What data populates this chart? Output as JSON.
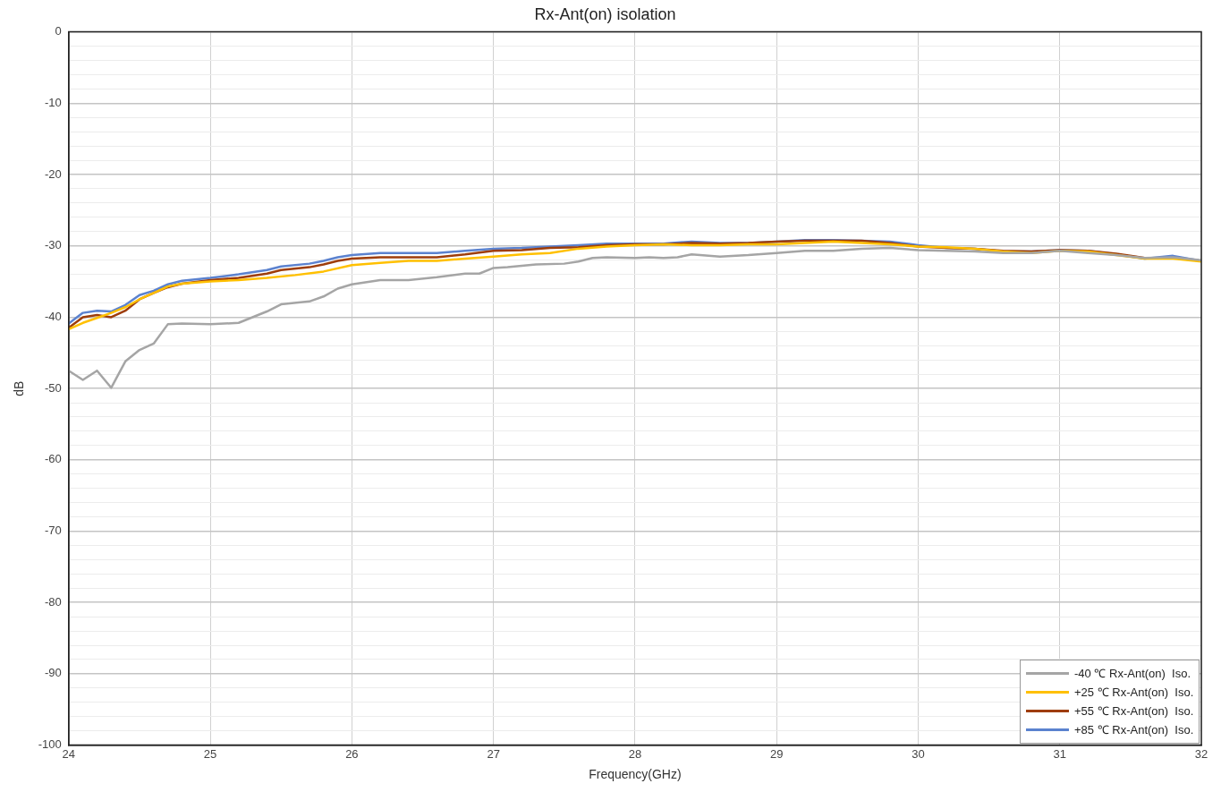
{
  "chart_data": {
    "type": "line",
    "title": "Rx-Ant(on) isolation",
    "xlabel": "Frequency(GHz)",
    "ylabel": "dB",
    "xlim": [
      24,
      32
    ],
    "xticks": [
      24,
      25,
      26,
      27,
      28,
      29,
      30,
      31,
      32
    ],
    "ylim": [
      -100,
      0
    ],
    "yticks": [
      0,
      {
        "value": -2,
        "label": null
      },
      {
        "value": -4,
        "label": null
      },
      {
        "value": -6,
        "label": null
      },
      {
        "value": -8,
        "label": null
      },
      -10,
      {
        "value": -12,
        "label": null
      },
      {
        "value": -14,
        "label": null
      },
      {
        "value": -16,
        "label": null
      },
      {
        "value": -18,
        "label": null
      },
      -20,
      {
        "value": -22,
        "label": null
      },
      {
        "value": -24,
        "label": null
      },
      {
        "value": -26,
        "label": null
      },
      {
        "value": -28,
        "label": null
      },
      -30,
      {
        "value": -32,
        "label": null
      },
      {
        "value": -34,
        "label": null
      },
      {
        "value": -36,
        "label": null
      },
      {
        "value": -38,
        "label": null
      },
      -40,
      {
        "value": -42,
        "label": null
      },
      {
        "value": -44,
        "label": null
      },
      {
        "value": -46,
        "label": null
      },
      {
        "value": -48,
        "label": null
      },
      -50,
      {
        "value": -52,
        "label": null
      },
      {
        "value": -54,
        "label": null
      },
      {
        "value": -56,
        "label": null
      },
      {
        "value": -58,
        "label": null
      },
      -60,
      {
        "value": -62,
        "label": null
      },
      {
        "value": -64,
        "label": null
      },
      {
        "value": -66,
        "label": null
      },
      {
        "value": -68,
        "label": null
      },
      -70,
      {
        "value": -72,
        "label": null
      },
      {
        "value": -74,
        "label": null
      },
      {
        "value": -76,
        "label": null
      },
      {
        "value": -78,
        "label": null
      },
      -80,
      {
        "value": -82,
        "label": null
      },
      {
        "value": -84,
        "label": null
      },
      {
        "value": -86,
        "label": null
      },
      {
        "value": -88,
        "label": null
      },
      -90,
      {
        "value": -92,
        "label": null
      },
      {
        "value": -94,
        "label": null
      },
      {
        "value": -96,
        "label": null
      },
      {
        "value": -98,
        "label": null
      },
      -100
    ],
    "grid": true,
    "legend": "bottom right",
    "marker": "none",
    "line_style": "solid",
    "series": [
      {
        "name": "-40 ℃ Rx-Ant(on)  Iso.",
        "color": "#a5a5a5",
        "x": [
          24,
          24.1,
          24.2,
          24.3,
          24.4,
          24.5,
          24.6,
          24.7,
          24.8,
          25,
          25.2,
          25.4,
          25.5,
          25.7,
          25.8,
          25.9,
          26,
          26.2,
          26.4,
          26.6,
          26.8,
          26.9,
          27,
          27.1,
          27.3,
          27.5,
          27.6,
          27.7,
          27.8,
          28,
          28.1,
          28.2,
          28.3,
          28.4,
          28.6,
          28.8,
          29,
          29.2,
          29.4,
          29.6,
          29.8,
          30,
          30.2,
          30.4,
          30.6,
          30.8,
          31,
          31.2,
          31.4,
          31.6,
          31.8,
          32
        ],
        "values": [
          -47.5,
          -48.8,
          -47.5,
          -49.9,
          -46.2,
          -44.6,
          -43.7,
          -41,
          -40.9,
          -41,
          -40.8,
          -39.2,
          -38.2,
          -37.8,
          -37.1,
          -36,
          -35.4,
          -34.8,
          -34.8,
          -34.4,
          -33.9,
          -33.9,
          -33.1,
          -33,
          -32.6,
          -32.5,
          -32.2,
          -31.7,
          -31.6,
          -31.7,
          -31.6,
          -31.7,
          -31.6,
          -31.2,
          -31.5,
          -31.3,
          -31,
          -30.7,
          -30.7,
          -30.4,
          -30.3,
          -30.6,
          -30.7,
          -30.8,
          -31,
          -31,
          -30.7,
          -31,
          -31.3,
          -31.7,
          -31.6,
          -32
        ]
      },
      {
        "name": "+25 ℃ Rx-Ant(on)  Iso.",
        "color": "#ffc000",
        "x": [
          24,
          24.1,
          24.2,
          24.3,
          24.4,
          24.5,
          24.6,
          24.7,
          24.8,
          25,
          25.2,
          25.4,
          25.6,
          25.8,
          26,
          26.2,
          26.4,
          26.6,
          26.8,
          27,
          27.2,
          27.4,
          27.6,
          27.8,
          28,
          28.2,
          28.4,
          28.6,
          28.8,
          29,
          29.2,
          29.4,
          29.6,
          29.8,
          30,
          30.2,
          30.4,
          30.6,
          30.8,
          31,
          31.2,
          31.4,
          31.6,
          31.8,
          32
        ],
        "values": [
          -41.7,
          -40.8,
          -40.1,
          -39.4,
          -38.6,
          -37.5,
          -36.6,
          -35.7,
          -35.3,
          -35,
          -34.8,
          -34.5,
          -34.1,
          -33.6,
          -32.7,
          -32.4,
          -32.1,
          -32.1,
          -31.8,
          -31.5,
          -31.2,
          -31,
          -30.4,
          -30.1,
          -29.9,
          -29.8,
          -29.9,
          -29.9,
          -29.8,
          -29.8,
          -29.6,
          -29.4,
          -29.6,
          -29.8,
          -30.1,
          -30.2,
          -30.4,
          -30.8,
          -31,
          -30.7,
          -30.8,
          -31.3,
          -31.8,
          -31.8,
          -32.2
        ]
      },
      {
        "name": "+55 ℃ Rx-Ant(on)  Iso.",
        "color": "#9e3d0a",
        "x": [
          24,
          24.1,
          24.2,
          24.3,
          24.4,
          24.5,
          24.6,
          24.7,
          24.8,
          25,
          25.2,
          25.4,
          25.5,
          25.7,
          25.8,
          25.9,
          26,
          26.2,
          26.6,
          26.8,
          27,
          27.2,
          27.4,
          27.6,
          27.8,
          28,
          28.2,
          28.4,
          28.6,
          28.8,
          29,
          29.2,
          29.4,
          29.6,
          29.8,
          30,
          30.2,
          30.4,
          30.6,
          30.8,
          31,
          31.2,
          31.4,
          31.6,
          31.8,
          32
        ],
        "values": [
          -41.5,
          -40,
          -39.7,
          -40,
          -39.1,
          -37.5,
          -36.6,
          -35.8,
          -35.3,
          -34.8,
          -34.5,
          -33.9,
          -33.4,
          -33,
          -32.6,
          -32.1,
          -31.8,
          -31.6,
          -31.6,
          -31.2,
          -30.7,
          -30.6,
          -30.3,
          -30.2,
          -29.9,
          -29.8,
          -29.8,
          -29.6,
          -29.7,
          -29.6,
          -29.4,
          -29.3,
          -29.3,
          -29.3,
          -29.6,
          -30.1,
          -30.3,
          -30.4,
          -30.7,
          -30.8,
          -30.6,
          -30.7,
          -31.1,
          -31.7,
          -31.7,
          -32.1
        ]
      },
      {
        "name": "+85 ℃ Rx-Ant(on)  Iso.",
        "color": "#5b82cf",
        "x": [
          24,
          24.1,
          24.2,
          24.3,
          24.4,
          24.5,
          24.6,
          24.7,
          24.8,
          25,
          25.2,
          25.4,
          25.5,
          25.7,
          25.8,
          25.9,
          26,
          26.2,
          26.6,
          26.8,
          27,
          27.2,
          27.4,
          27.6,
          27.8,
          28,
          28.2,
          28.4,
          28.6,
          28.8,
          29,
          29.2,
          29.4,
          29.6,
          29.8,
          30,
          30.2,
          30.4,
          30.6,
          30.8,
          31,
          31.2,
          31.4,
          31.6,
          31.8,
          32
        ],
        "values": [
          -40.9,
          -39.4,
          -39.1,
          -39.2,
          -38.3,
          -36.9,
          -36.3,
          -35.4,
          -34.9,
          -34.5,
          -34,
          -33.4,
          -32.9,
          -32.5,
          -32.1,
          -31.6,
          -31.3,
          -31,
          -31,
          -30.7,
          -30.4,
          -30.3,
          -30.1,
          -29.9,
          -29.7,
          -29.7,
          -29.7,
          -29.4,
          -29.6,
          -29.6,
          -29.4,
          -29.2,
          -29.2,
          -29.3,
          -29.4,
          -29.9,
          -30.3,
          -30.4,
          -30.8,
          -30.8,
          -30.6,
          -30.7,
          -31.2,
          -31.8,
          -31.4,
          -32.1
        ]
      }
    ]
  }
}
